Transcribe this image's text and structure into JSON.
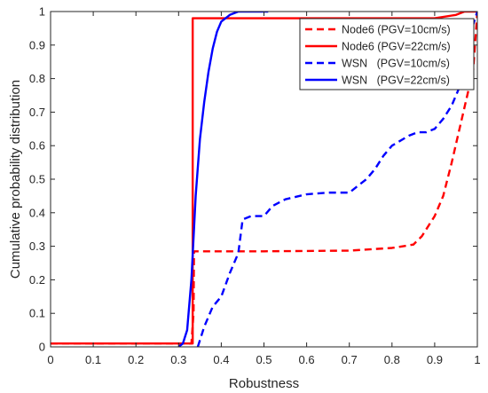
{
  "chart_data": {
    "type": "line",
    "title": "",
    "xlabel": "Robustness",
    "ylabel": "Cumulative probability distribution",
    "xlim": [
      0,
      1
    ],
    "ylim": [
      0,
      1
    ],
    "xticks": [
      0,
      0.1,
      0.2,
      0.3,
      0.4,
      0.5,
      0.6,
      0.7,
      0.8,
      0.9,
      1
    ],
    "yticks": [
      0,
      0.1,
      0.2,
      0.3,
      0.4,
      0.5,
      0.6,
      0.7,
      0.8,
      0.9,
      1
    ],
    "xtick_labels": [
      "0",
      "0.1",
      "0.2",
      "0.3",
      "0.4",
      "0.5",
      "0.6",
      "0.7",
      "0.8",
      "0.9",
      "1"
    ],
    "ytick_labels": [
      "0",
      "0.1",
      "0.2",
      "0.3",
      "0.4",
      "0.5",
      "0.6",
      "0.7",
      "0.8",
      "0.9",
      "1"
    ],
    "grid": false,
    "legend_position": "top-right",
    "series": [
      {
        "name": "Node6 (PGV=10cm/s)",
        "color": "#ff0000",
        "style": "dashed",
        "x": [
          0,
          0.33,
          0.335,
          0.336,
          0.5,
          0.7,
          0.8,
          0.85,
          0.87,
          0.9,
          0.92,
          0.94,
          0.96,
          0.98,
          0.99,
          1.0
        ],
        "y": [
          0.01,
          0.01,
          0.1,
          0.285,
          0.285,
          0.287,
          0.295,
          0.305,
          0.33,
          0.39,
          0.45,
          0.55,
          0.66,
          0.77,
          0.82,
          1.0
        ]
      },
      {
        "name": "Node6 (PGV=22cm/s)",
        "color": "#ff0000",
        "style": "solid",
        "x": [
          0,
          0.333,
          0.333,
          0.9,
          0.95,
          0.97,
          1.0,
          1.0
        ],
        "y": [
          0.01,
          0.01,
          0.98,
          0.98,
          0.99,
          1.0,
          1.0,
          0.99
        ]
      },
      {
        "name": "WSN   (PGV=10cm/s)",
        "color": "#0000ff",
        "style": "dashed",
        "x": [
          0.345,
          0.36,
          0.38,
          0.4,
          0.42,
          0.44,
          0.45,
          0.47,
          0.5,
          0.52,
          0.55,
          0.6,
          0.65,
          0.7,
          0.72,
          0.74,
          0.76,
          0.78,
          0.8,
          0.84,
          0.86,
          0.88,
          0.9,
          0.92,
          0.94,
          0.96,
          0.98,
          0.99,
          1.0
        ],
        "y": [
          0.0,
          0.06,
          0.12,
          0.15,
          0.22,
          0.28,
          0.38,
          0.39,
          0.39,
          0.42,
          0.44,
          0.455,
          0.46,
          0.46,
          0.48,
          0.5,
          0.53,
          0.57,
          0.6,
          0.63,
          0.64,
          0.64,
          0.65,
          0.68,
          0.72,
          0.78,
          0.88,
          0.96,
          1.0
        ]
      },
      {
        "name": "WSN   (PGV=22cm/s)",
        "color": "#0000ff",
        "style": "solid",
        "x": [
          0.3,
          0.31,
          0.32,
          0.33,
          0.34,
          0.35,
          0.36,
          0.37,
          0.38,
          0.39,
          0.4,
          0.41,
          0.42,
          0.43,
          0.44,
          0.45,
          0.47,
          0.5,
          0.51
        ],
        "y": [
          0.0,
          0.01,
          0.05,
          0.2,
          0.45,
          0.62,
          0.73,
          0.82,
          0.89,
          0.94,
          0.97,
          0.98,
          0.99,
          0.995,
          1.0,
          1.0,
          1.0,
          1.0,
          1.0
        ]
      }
    ]
  }
}
